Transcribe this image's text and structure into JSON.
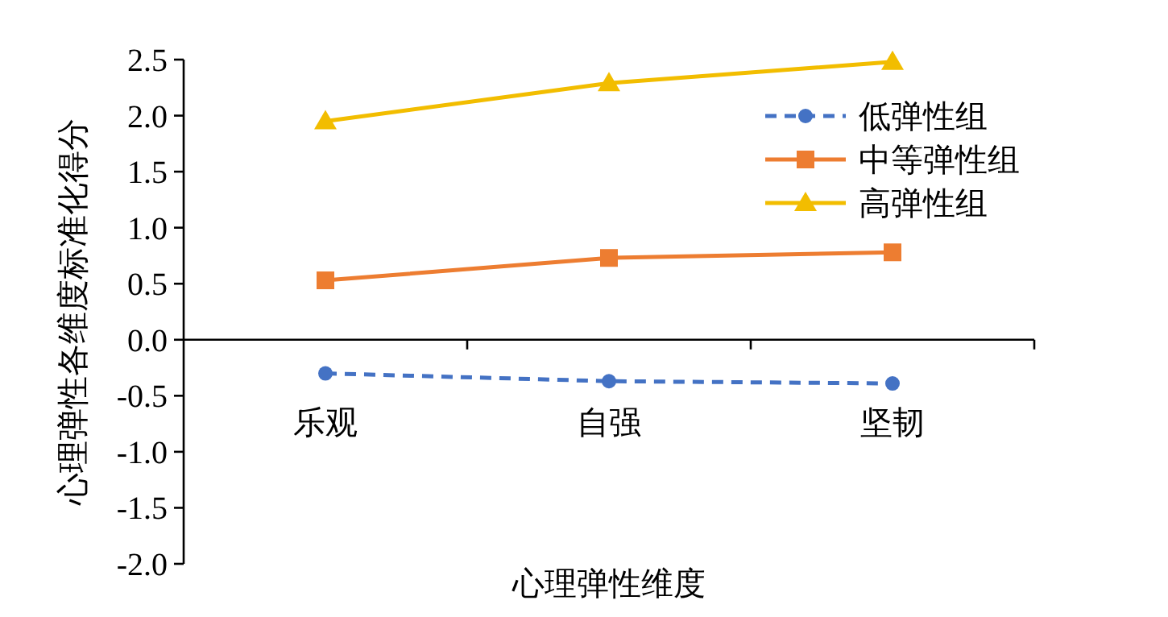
{
  "chart_data": {
    "type": "line",
    "xlabel": "心理弹性维度",
    "ylabel": "心理弹性各维度标准化得分",
    "categories": [
      "乐观",
      "自强",
      "坚韧"
    ],
    "series": [
      {
        "name": "低弹性组",
        "color": "#4472c4",
        "marker": "circle",
        "line_style": "dashed",
        "values": [
          -0.3,
          -0.37,
          -0.39
        ]
      },
      {
        "name": "中等弹性组",
        "color": "#ed7d31",
        "marker": "square",
        "line_style": "solid",
        "values": [
          0.53,
          0.73,
          0.78
        ]
      },
      {
        "name": "高弹性组",
        "color": "#f2bd00",
        "marker": "triangle",
        "line_style": "solid",
        "values": [
          1.95,
          2.29,
          2.48
        ]
      }
    ],
    "ylim": [
      -2.0,
      2.5
    ],
    "yticks": [
      {
        "value": -2.0,
        "label": "-2.0"
      },
      {
        "value": -1.5,
        "label": "-1.5"
      },
      {
        "value": -1.0,
        "label": "-1.0"
      },
      {
        "value": -0.5,
        "label": "-0.5"
      },
      {
        "value": 0,
        "label": "0.0"
      },
      {
        "value": 0.5,
        "label": "0.5"
      },
      {
        "value": 1.0,
        "label": "1.0"
      },
      {
        "value": 1.5,
        "label": "1.5"
      },
      {
        "value": 2.0,
        "label": "2.0"
      },
      {
        "value": 2.5,
        "label": "2.5"
      }
    ],
    "grid": false,
    "legend": "top right"
  }
}
